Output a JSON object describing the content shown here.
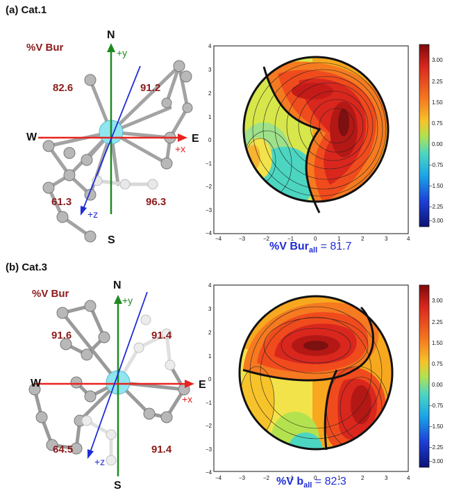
{
  "panels": [
    {
      "label": "(a) Cat.1",
      "vbur_title": "%V Bur",
      "compass": {
        "N": "N",
        "S": "S",
        "E": "E",
        "W": "W"
      },
      "axes": {
        "x": "+x",
        "y": "+y",
        "z": "+z"
      },
      "quadrants": {
        "top_left": "82.6",
        "top_right": "91.2",
        "bottom_left": "61.3",
        "bottom_right": "96.3"
      },
      "caption": {
        "prefix": "%V Bur",
        "sub": "all",
        "value": " = 81.7"
      }
    },
    {
      "label": "(b) Cat.3",
      "vbur_title": "%V Bur",
      "compass": {
        "N": "N",
        "S": "S",
        "E": "E",
        "W": "W"
      },
      "axes": {
        "x": "+x",
        "y": "+y",
        "z": "+z"
      },
      "quadrants": {
        "top_left": "91.6",
        "top_right": "91.4",
        "bottom_left": "64.5",
        "bottom_right": "91.4"
      },
      "caption": {
        "prefix": "%V b",
        "sub": "all",
        "value": " = 82.3"
      }
    }
  ],
  "contour_axes": {
    "x_ticks": [
      "−4",
      "−3",
      "−2",
      "−1",
      "0",
      "1",
      "2",
      "3",
      "4"
    ],
    "y_ticks": [
      "4",
      "3",
      "2",
      "1",
      "0",
      "−1",
      "−2",
      "−3",
      "−4"
    ]
  },
  "colorbar": {
    "ticks": [
      "3.00",
      "2.25",
      "1.50",
      "0.75",
      "0.00",
      "−0.75",
      "−1.50",
      "−2.25",
      "−3.00"
    ]
  },
  "colors": {
    "x_axis": "#e8231f",
    "y_axis": "#1e8a1e",
    "z_axis": "#1f2bd6",
    "quadrant_text": "#8b1a1a",
    "metal": "#8fe6f0"
  }
}
